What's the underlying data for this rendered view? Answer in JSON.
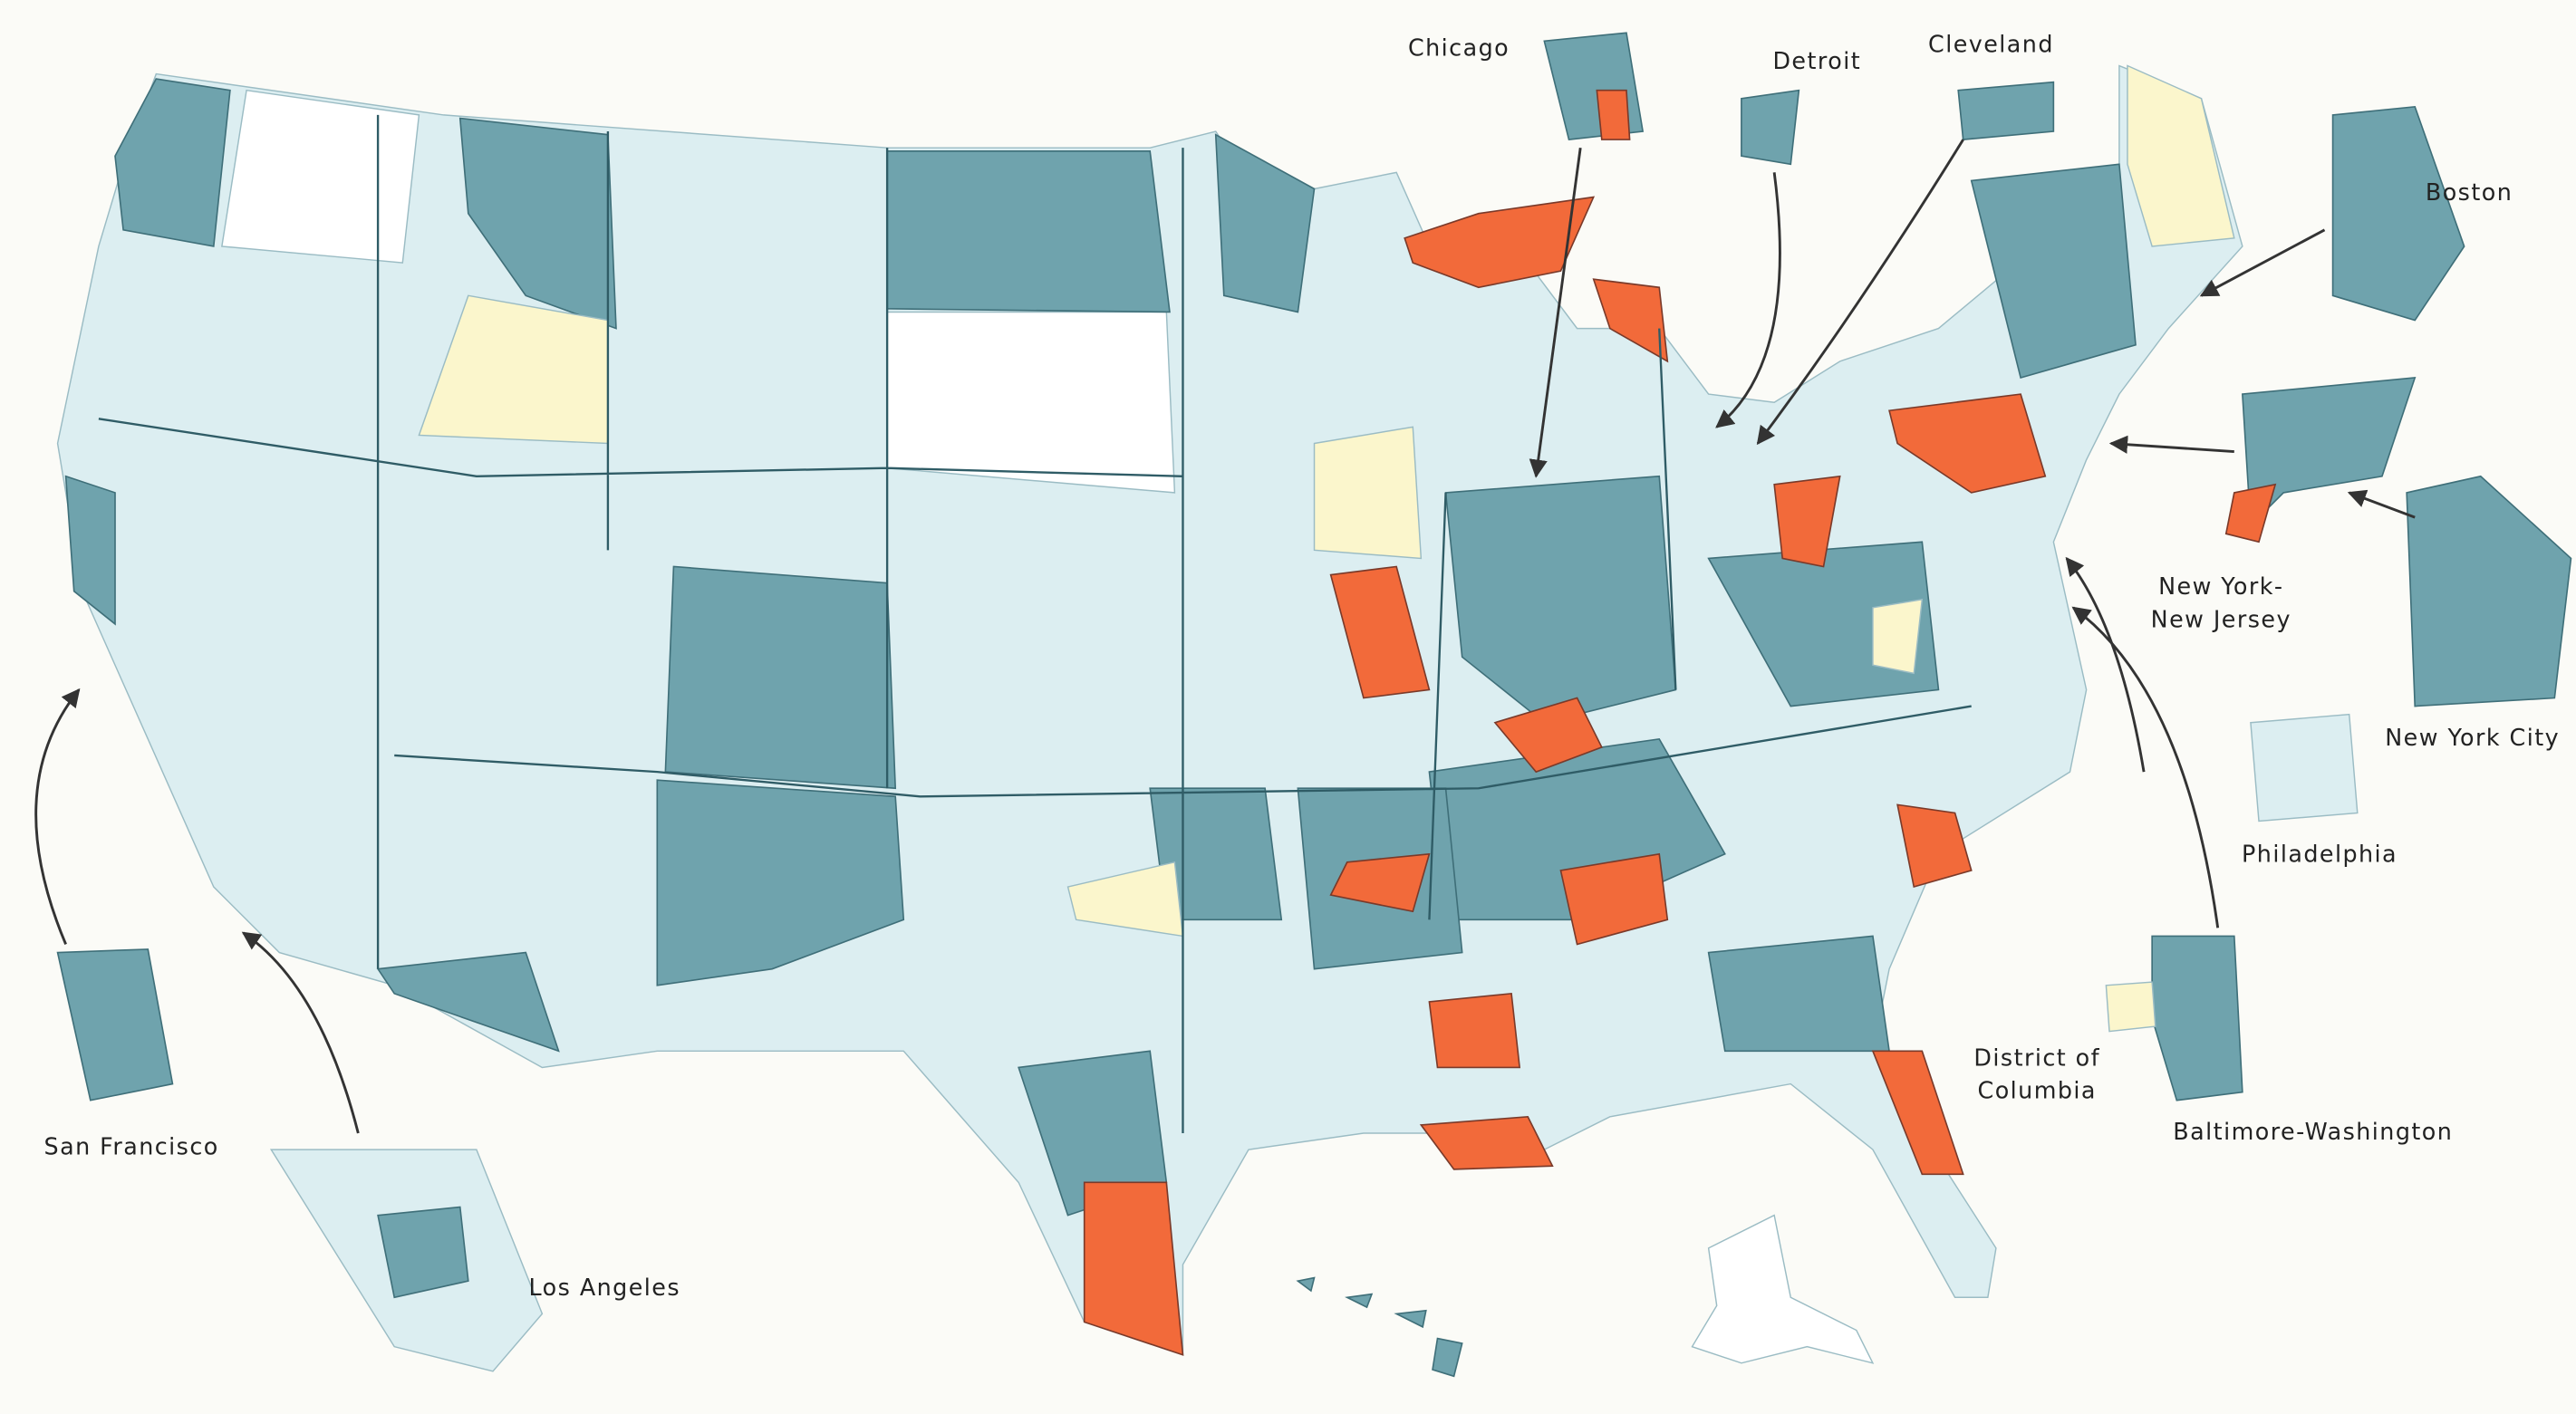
{
  "insets": [
    {
      "lines": [
        "Chicago"
      ]
    },
    {
      "lines": [
        "Detroit"
      ]
    },
    {
      "lines": [
        "Cleveland"
      ]
    },
    {
      "lines": [
        "Boston"
      ]
    },
    {
      "lines": [
        "New York-",
        "New Jersey"
      ]
    },
    {
      "lines": [
        "New York City"
      ]
    },
    {
      "lines": [
        "Philadelphia"
      ]
    },
    {
      "lines": [
        "District of",
        "Columbia"
      ]
    },
    {
      "lines": [
        "Baltimore-Washington"
      ]
    },
    {
      "lines": [
        "San Francisco"
      ]
    },
    {
      "lines": [
        "Los Angeles"
      ]
    }
  ]
}
